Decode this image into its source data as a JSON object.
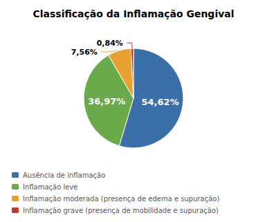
{
  "chart_data": {
    "type": "pie",
    "title": "Classificação da Inflamação Gengival",
    "categories": [
      "Ausência de inflamação",
      "Inflamação leve",
      "Inflamação moderada (presença de edema e supuração)",
      "Inflamação grave (presença de mobilidade e supuração)"
    ],
    "values": [
      54.62,
      36.97,
      7.56,
      0.84
    ],
    "value_labels": [
      "54,62%",
      "36,97%",
      "7,56%",
      "0,84%"
    ],
    "colors": [
      "#3a6fa8",
      "#6aaa4b",
      "#e8a030",
      "#c0392b"
    ],
    "data_labels": true,
    "legend": "lower left"
  }
}
